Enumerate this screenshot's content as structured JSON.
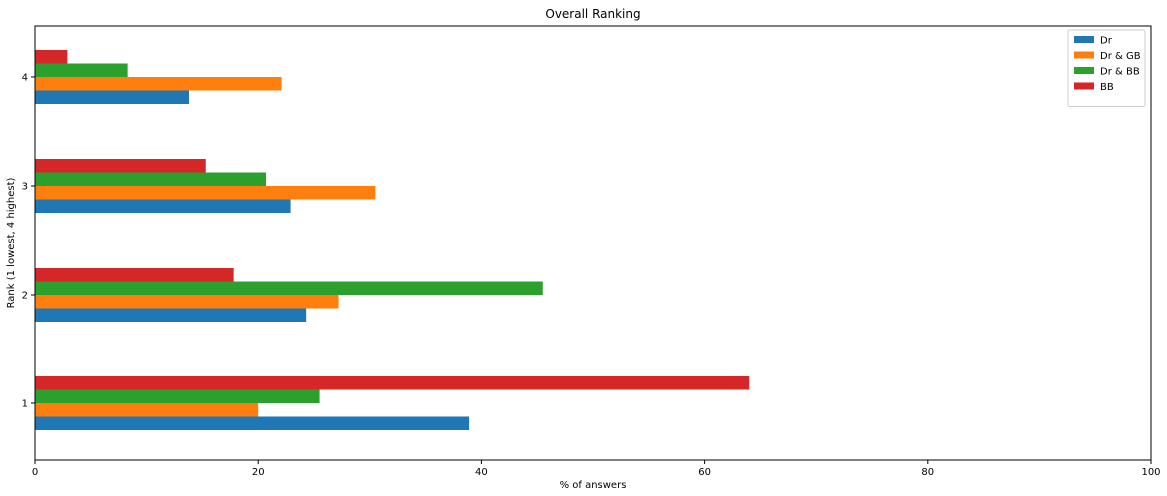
{
  "chart_data": {
    "type": "bar",
    "orientation": "horizontal",
    "title": "Overall Ranking",
    "xlabel": "% of answers",
    "ylabel": "Rank (1 lowest, 4 highest)",
    "categories": [
      "1",
      "2",
      "3",
      "4"
    ],
    "xlim": [
      0,
      100
    ],
    "xticks": [
      "0",
      "20",
      "40",
      "60",
      "80",
      "100"
    ],
    "grid": false,
    "legend_position": "top-right",
    "series": [
      {
        "name": "Dr",
        "color": "#1f77b4",
        "values": [
          38.9,
          24.3,
          22.9,
          13.8
        ]
      },
      {
        "name": "Dr & GB",
        "color": "#ff7f0e",
        "values": [
          20.0,
          27.2,
          30.5,
          22.1
        ]
      },
      {
        "name": "Dr & BB",
        "color": "#2ca02c",
        "values": [
          25.5,
          45.5,
          20.7,
          8.3
        ]
      },
      {
        "name": "BB",
        "color": "#d62728",
        "values": [
          64.0,
          17.8,
          15.3,
          2.9
        ]
      }
    ]
  }
}
